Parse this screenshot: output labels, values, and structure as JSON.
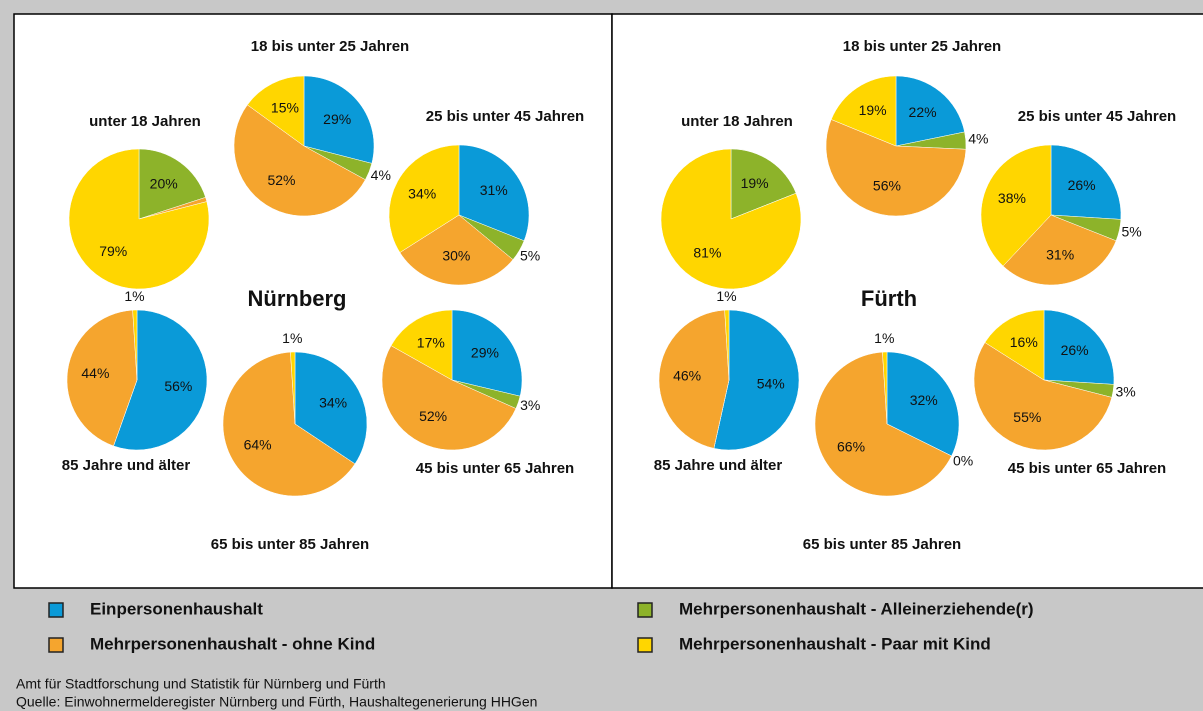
{
  "legend": {
    "names": [
      "Einpersonenhaushalt",
      "Mehrpersonenhaushalt - Alleinerziehende(r)",
      "Mehrpersonenhaushalt - ohne Kind",
      "Mehrpersonenhaushalt - Paar mit Kind"
    ],
    "colors": [
      "#0a9ad8",
      "#8db32a",
      "#f5a52e",
      "#ffd600"
    ]
  },
  "footer": [
    "Amt für Stadtforschung und Statistik für Nürnberg und Fürth",
    "Quelle: Einwohnermelderegister Nürnberg und Fürth, Haushaltegenerierung HHGen"
  ],
  "chart_data": [
    {
      "type": "pie",
      "title": "Nürnberg",
      "pies": [
        {
          "label": "unter 18 Jahren",
          "values": [
            0,
            20,
            1,
            79
          ],
          "value_labels": [
            null,
            "20%",
            null,
            "79%"
          ]
        },
        {
          "label": "18 bis unter 25 Jahren",
          "values": [
            29,
            4,
            52,
            15
          ],
          "value_labels": [
            "29%",
            "4%",
            "52%",
            "15%"
          ]
        },
        {
          "label": "25 bis unter 45 Jahren",
          "values": [
            31,
            5,
            30,
            34
          ],
          "value_labels": [
            "31%",
            "5%",
            "30%",
            "34%"
          ]
        },
        {
          "label": "85 Jahre und älter",
          "values": [
            56,
            0,
            44,
            1
          ],
          "value_labels": [
            "56%",
            null,
            "44%",
            "1%"
          ]
        },
        {
          "label": "65 bis unter 85 Jahren",
          "values": [
            34,
            0,
            64,
            1
          ],
          "value_labels": [
            "34%",
            null,
            "64%",
            "1%"
          ]
        },
        {
          "label": "45 bis unter 65 Jahren",
          "values": [
            29,
            3,
            52,
            17
          ],
          "value_labels": [
            "29%",
            "3%",
            "52%",
            "17%"
          ]
        }
      ]
    },
    {
      "type": "pie",
      "title": "Fürth",
      "pies": [
        {
          "label": "unter 18 Jahren",
          "values": [
            0,
            19,
            0,
            81
          ],
          "value_labels": [
            null,
            "19%",
            null,
            "81%"
          ]
        },
        {
          "label": "18 bis unter 25 Jahren",
          "values": [
            22,
            4,
            56,
            19
          ],
          "value_labels": [
            "22%",
            "4%",
            "56%",
            "19%"
          ]
        },
        {
          "label": "25 bis unter 45 Jahren",
          "values": [
            26,
            5,
            31,
            38
          ],
          "value_labels": [
            "26%",
            "5%",
            "31%",
            "38%"
          ]
        },
        {
          "label": "85 Jahre und älter",
          "values": [
            54,
            0,
            46,
            1
          ],
          "value_labels": [
            "54%",
            null,
            "46%",
            "1%"
          ]
        },
        {
          "label": "65 bis unter 85 Jahren",
          "values": [
            32,
            0,
            66,
            1
          ],
          "value_labels": [
            "32%",
            "0%",
            "66%",
            "1%"
          ]
        },
        {
          "label": "45 bis unter 65 Jahren",
          "values": [
            26,
            3,
            55,
            16
          ],
          "value_labels": [
            "26%",
            "3%",
            "55%",
            "16%"
          ]
        }
      ]
    }
  ]
}
